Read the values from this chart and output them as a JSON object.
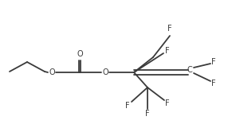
{
  "bg_color": "#ffffff",
  "line_color": "#3a3a3a",
  "text_color": "#3a3a3a",
  "font_size": 7.0,
  "line_width": 1.3,
  "figsize": [
    2.96,
    1.66
  ],
  "dpi": 100,
  "xlim": [
    0,
    296
  ],
  "ylim": [
    0,
    166
  ]
}
